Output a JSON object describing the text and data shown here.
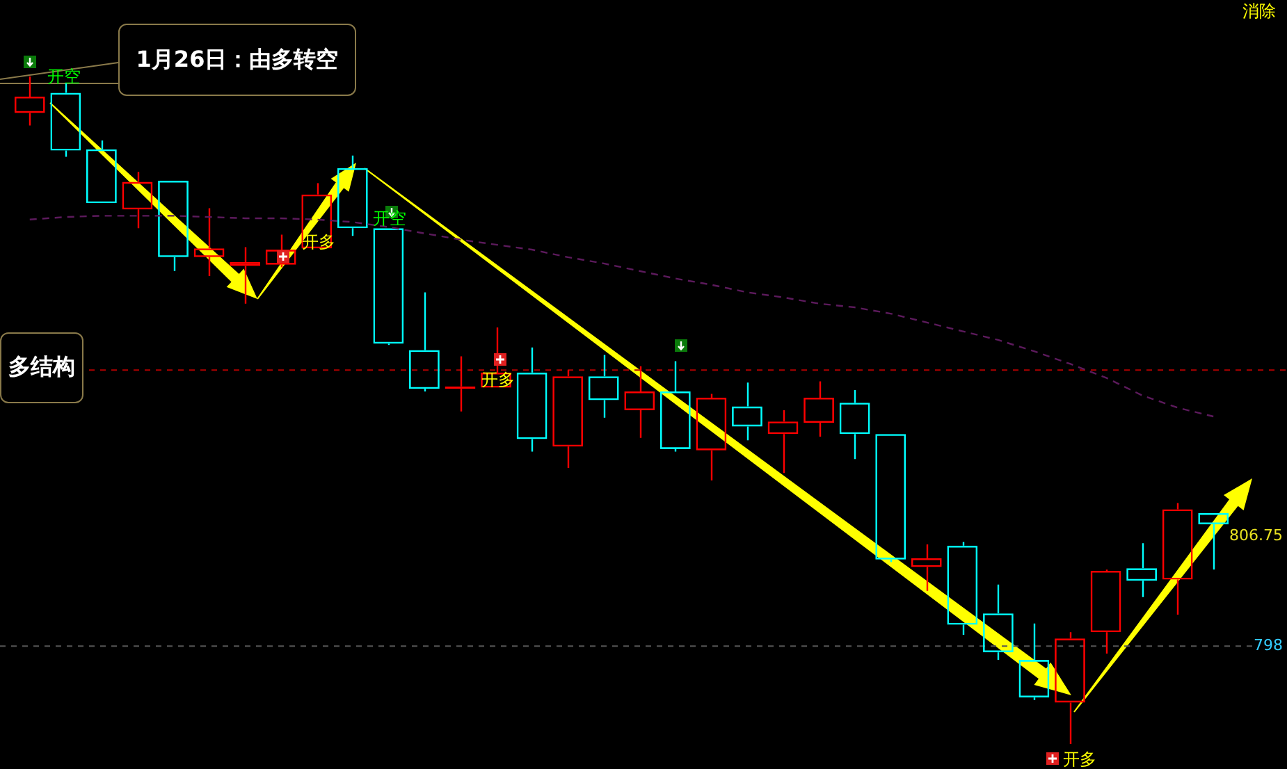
{
  "chart_data": {
    "type": "candlestick",
    "categories": [
      null,
      null,
      null,
      null,
      null,
      null,
      null,
      null,
      null,
      null,
      null,
      null,
      null,
      null,
      null,
      null,
      null,
      null,
      null,
      null,
      null,
      null,
      null,
      null,
      null,
      null,
      null,
      null,
      null,
      null,
      null,
      null,
      null,
      null
    ],
    "ohlc": [
      [
        840.5,
        843.4,
        839.5,
        841.8
      ],
      [
        842.1,
        842.9,
        837.0,
        837.5
      ],
      [
        837.6,
        838.3,
        833.3,
        833.3
      ],
      [
        832.8,
        835.8,
        831.3,
        835.0
      ],
      [
        835.1,
        835.1,
        827.9,
        829.0
      ],
      [
        829.0,
        832.9,
        827.5,
        829.7
      ],
      [
        828.3,
        829.8,
        825.3,
        828.6
      ],
      [
        828.4,
        830.8,
        828.2,
        829.6
      ],
      [
        829.7,
        834.9,
        829.7,
        834.0
      ],
      [
        836.1,
        837.1,
        830.7,
        831.3
      ],
      [
        831.3,
        831.3,
        822.0,
        822.1
      ],
      [
        821.6,
        826.2,
        818.3,
        818.5
      ],
      [
        818.5,
        821.1,
        816.7,
        818.7
      ],
      [
        818.6,
        823.4,
        818.6,
        819.8
      ],
      [
        819.8,
        821.8,
        813.5,
        814.5
      ],
      [
        813.9,
        820.0,
        812.2,
        819.5
      ],
      [
        819.5,
        821.2,
        816.2,
        817.6
      ],
      [
        816.8,
        820.3,
        814.6,
        818.3
      ],
      [
        818.3,
        820.7,
        813.5,
        813.7
      ],
      [
        813.6,
        818.1,
        811.2,
        817.8
      ],
      [
        817.1,
        819.0,
        814.4,
        815.5
      ],
      [
        814.9,
        816.8,
        811.8,
        815.9
      ],
      [
        815.8,
        819.1,
        814.7,
        817.8
      ],
      [
        817.4,
        818.4,
        812.9,
        814.9
      ],
      [
        814.9,
        814.9,
        804.7,
        804.9
      ],
      [
        804.3,
        806.1,
        802.4,
        805.0
      ],
      [
        806.0,
        806.3,
        798.9,
        799.7
      ],
      [
        800.6,
        802.9,
        796.9,
        797.5
      ],
      [
        796.9,
        799.8,
        793.7,
        793.9
      ],
      [
        793.5,
        799.1,
        790.2,
        798.6
      ],
      [
        799.1,
        804.1,
        797.4,
        804.0
      ],
      [
        804.2,
        806.2,
        801.9,
        803.2
      ],
      [
        803.3,
        809.4,
        800.5,
        808.9
      ],
      [
        808.6,
        808.6,
        804.1,
        807.7
      ]
    ],
    "colors": [
      "#ff0000",
      "#00ffff",
      "#00ffff",
      "#ff0000",
      "#00ffff",
      "#ff0000",
      "#ff0000",
      "#ff0000",
      "#ff0000",
      "#00ffff",
      "#00ffff",
      "#00ffff",
      "#ff0000",
      "#ff0000",
      "#00ffff",
      "#ff0000",
      "#00ffff",
      "#ff0000",
      "#00ffff",
      "#ff0000",
      "#00ffff",
      "#ff0000",
      "#ff0000",
      "#00ffff",
      "#00ffff",
      "#ff0000",
      "#00ffff",
      "#00ffff",
      "#00ffff",
      "#ff0000",
      "#ff0000",
      "#00ffff",
      "#ff0000",
      "#00ffff"
    ],
    "series": [
      {
        "type": "line",
        "color": "#5c1a5c",
        "line_style": "dashed",
        "values": [
          832.0,
          832.2,
          832.3,
          832.3,
          832.3,
          832.2,
          832.1,
          832.1,
          832.0,
          831.8,
          831.4,
          830.9,
          830.4,
          830.0,
          829.6,
          829.0,
          828.5,
          827.9,
          827.3,
          826.8,
          826.2,
          825.8,
          825.3,
          825.0,
          824.5,
          823.8,
          823.1,
          822.4,
          821.5,
          820.5,
          819.4,
          818.0,
          817.0,
          816.3
        ]
      }
    ],
    "ylim": [
      788.2,
      849.5
    ],
    "yticks": [
      {
        "value": 806.75,
        "label": "806.75"
      },
      {
        "value": 798,
        "label": "798"
      }
    ],
    "ref_lines": [
      {
        "axis": "y",
        "value": 820.0,
        "color": "#b00000",
        "line_style": "dashed"
      },
      {
        "axis": "y",
        "value": 798,
        "color": "#555555",
        "line_style": "dashed"
      }
    ],
    "annotations": [
      "1月26日：由多转空",
      "多结构",
      "消除",
      "开空",
      "开多",
      "开空",
      "开多",
      "开多"
    ]
  }
}
